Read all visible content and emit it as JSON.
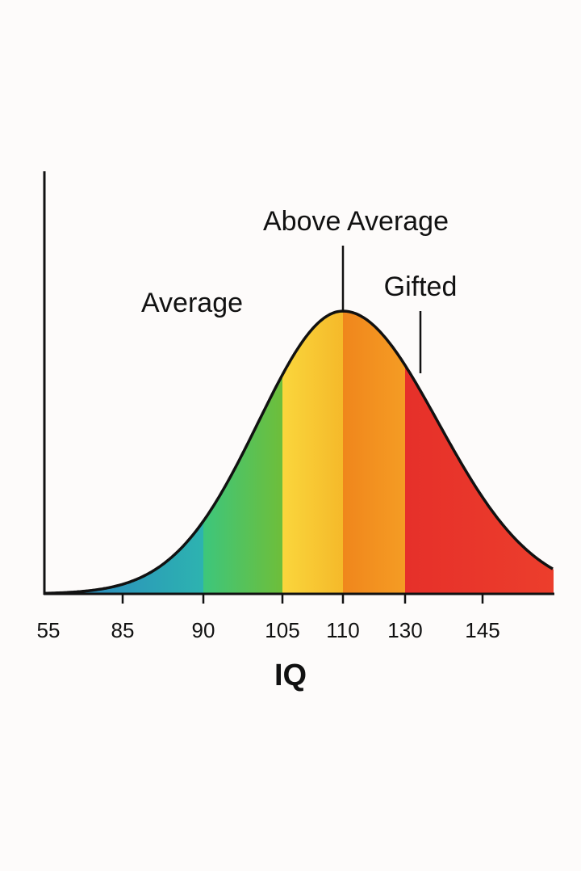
{
  "chart_data": {
    "type": "area",
    "title": "",
    "xlabel": "IQ",
    "ylabel": "",
    "x_tick_labels": [
      "55",
      "85",
      "90",
      "105",
      "110",
      "130",
      "145"
    ],
    "peak_at": "110",
    "grid": false,
    "bands": [
      {
        "from": "55",
        "to": "90",
        "color_start": "#2a7fc2",
        "color_end": "#2db3b0"
      },
      {
        "from": "90",
        "to": "105",
        "color_start": "#3dc67c",
        "color_end": "#6ebe3a"
      },
      {
        "from": "105",
        "to": "110",
        "color_start": "#fad63c",
        "color_end": "#f5b92a"
      },
      {
        "from": "110",
        "to": "130",
        "color_start": "#f0861c",
        "color_end": "#f59c24"
      },
      {
        "from": "130",
        "to": "end",
        "color_start": "#e6302a",
        "color_end": "#ec3e2c"
      }
    ],
    "annotations": [
      {
        "text": "Average",
        "at": "90-105"
      },
      {
        "text": "Above Average",
        "at": "110",
        "leader_line": true
      },
      {
        "text": "Gifted",
        "at": "130+",
        "leader_line": true
      }
    ]
  }
}
